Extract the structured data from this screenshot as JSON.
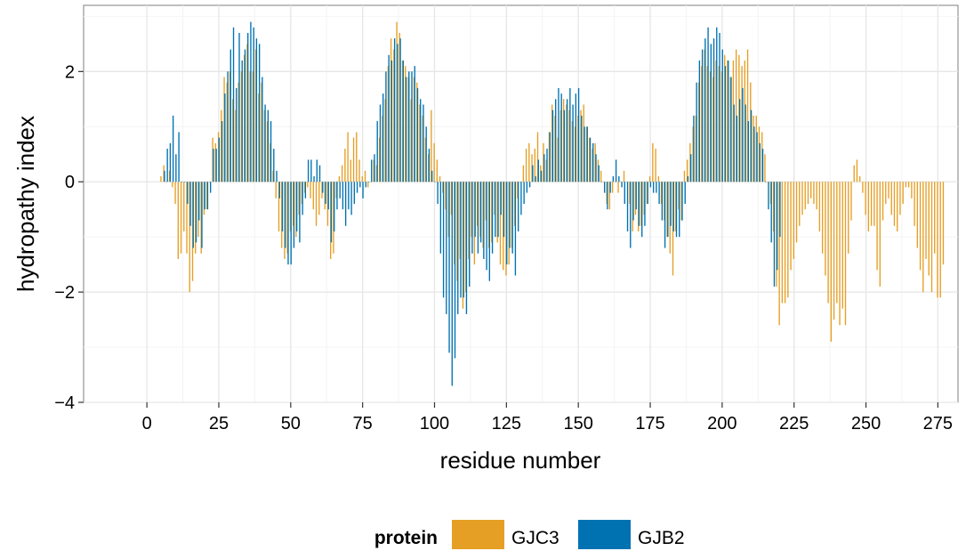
{
  "chart_data": {
    "type": "bar",
    "xlabel": "residue number",
    "ylabel": "hydropathy index",
    "xlim": [
      -22,
      282
    ],
    "ylim": [
      -4,
      3.2
    ],
    "x_ticks": [
      0,
      25,
      50,
      75,
      100,
      125,
      150,
      175,
      200,
      225,
      250,
      275
    ],
    "y_ticks": [
      -4,
      -2,
      0,
      2
    ],
    "x_tick_labels": [
      "0",
      "25",
      "50",
      "75",
      "100",
      "125",
      "150",
      "175",
      "200",
      "225",
      "250",
      "275"
    ],
    "y_tick_labels": [
      "−4",
      "−2",
      "0",
      "2"
    ],
    "grid": true,
    "legend": {
      "title": "protein",
      "placement": "bottom",
      "entries": [
        {
          "name": "GJC3",
          "color": "#E69F25"
        },
        {
          "name": "GJB2",
          "color": "#0072B2"
        }
      ]
    },
    "series": [
      {
        "name": "GJC3",
        "color": "#E69F25",
        "x_start": 5,
        "values": [
          0.1,
          0.3,
          0.0,
          0.2,
          -0.1,
          -0.4,
          -1.4,
          -1.3,
          -0.9,
          -1.3,
          -2.0,
          -1.8,
          -1.3,
          -1.0,
          -1.3,
          -0.6,
          -0.5,
          0.0,
          0.8,
          0.7,
          0.9,
          1.3,
          1.9,
          1.8,
          2.0,
          1.5,
          1.3,
          1.8,
          2.0,
          2.3,
          2.5,
          2.0,
          2.0,
          2.4,
          1.6,
          1.8,
          1.3,
          1.1,
          0.7,
          0.2,
          -0.3,
          -0.9,
          -1.2,
          -1.4,
          -1.3,
          -0.9,
          -0.8,
          -1.0,
          -0.6,
          -0.4,
          -0.2,
          -0.1,
          -0.3,
          -0.5,
          -0.8,
          -0.6,
          -0.3,
          -0.5,
          -0.8,
          -1.4,
          -1.3,
          -0.3,
          0.1,
          0.3,
          0.6,
          0.9,
          0.4,
          0.8,
          0.9,
          0.4,
          0.1,
          0.2,
          -0.1,
          0.0,
          0.4,
          0.3,
          0.8,
          1.2,
          1.5,
          2.1,
          2.6,
          2.4,
          2.9,
          2.7,
          2.2,
          2.1,
          1.9,
          1.5,
          1.9,
          1.8,
          1.4,
          1.2,
          0.8,
          0.5,
          1.3,
          0.7,
          0.4,
          0.1,
          -0.2,
          -0.5,
          -1.0,
          -0.6,
          -1.5,
          -1.8,
          -1.4,
          -2.3,
          -2.0,
          -1.4,
          -1.0,
          -1.5,
          -0.8,
          -1.0,
          -1.2,
          -0.7,
          -1.2,
          -1.1,
          -0.6,
          -1.1,
          -1.5,
          -1.6,
          -1.7,
          -1.5,
          -1.2,
          -0.8,
          -0.3,
          0.0,
          0.3,
          0.6,
          0.7,
          0.5,
          0.6,
          0.9,
          0.3,
          0.7,
          0.4,
          0.9,
          1.4,
          1.2,
          0.8,
          1.3,
          1.5,
          1.4,
          1.3,
          1.1,
          1.0,
          1.2,
          1.3,
          1.4,
          1.0,
          0.8,
          0.6,
          0.7,
          0.4,
          0.2,
          0.0,
          -0.4,
          -0.5,
          -0.2,
          0.0,
          -0.2,
          0.0,
          0.2,
          0.0,
          -0.4,
          -0.9,
          -0.6,
          -0.9,
          -0.8,
          -0.6,
          -0.4,
          0.1,
          0.7,
          0.6,
          0.1,
          -0.4,
          -0.7,
          -1.0,
          -1.3,
          -1.7,
          -0.9,
          -0.5,
          -0.7,
          0.2,
          0.4,
          0.7,
          1.0,
          1.2,
          1.8,
          2.1,
          2.4,
          2.1,
          2.0,
          1.9,
          2.2,
          2.1,
          2.0,
          2.3,
          2.2,
          1.9,
          2.2,
          2.4,
          2.3,
          2.1,
          2.2,
          2.4,
          1.8,
          1.2,
          1.2,
          1.0,
          0.9,
          0.5,
          0.0,
          -0.4,
          -0.9,
          -1.9,
          -2.6,
          -2.2,
          -2.2,
          -2.1,
          -1.6,
          -1.4,
          -1.1,
          -0.8,
          -0.6,
          -0.5,
          -0.4,
          -0.3,
          -0.4,
          -0.5,
          -0.9,
          -1.3,
          -1.7,
          -2.2,
          -2.9,
          -2.5,
          -2.2,
          -2.6,
          -2.3,
          -2.6,
          -1.3,
          -0.7,
          0.3,
          0.4,
          0.1,
          -0.2,
          -0.6,
          -0.9,
          -0.8,
          -0.8,
          -1.6,
          -1.9,
          -0.7,
          -0.4,
          -0.3,
          -0.6,
          -0.8,
          -0.9,
          -0.6,
          -0.4,
          -0.1,
          -0.1,
          -0.3,
          -0.8,
          -1.2,
          -1.6,
          -2.0,
          -1.4,
          -1.7,
          -2.0,
          -1.3,
          -2.1,
          -2.1,
          -1.5
        ]
      },
      {
        "name": "GJB2",
        "color": "#0072B2",
        "x_start": 6,
        "values": [
          0.2,
          0.6,
          0.7,
          1.2,
          0.5,
          0.9,
          0.0,
          0.0,
          -0.4,
          -0.8,
          -1.2,
          -1.1,
          -0.7,
          -1.2,
          -0.5,
          -0.5,
          -0.2,
          0.6,
          0.6,
          0.8,
          1.1,
          1.6,
          2.0,
          2.4,
          2.8,
          1.7,
          2.7,
          2.2,
          2.4,
          2.7,
          2.9,
          2.8,
          2.6,
          2.5,
          1.9,
          1.4,
          1.3,
          1.1,
          0.6,
          0.2,
          -0.3,
          -0.9,
          -1.2,
          -1.5,
          -1.5,
          -1.2,
          -0.9,
          -1.1,
          -0.6,
          -0.3,
          0.4,
          0.4,
          0.1,
          0.4,
          0.3,
          -0.2,
          -0.4,
          -0.5,
          -1.1,
          -0.9,
          -0.5,
          -0.3,
          -0.5,
          -0.8,
          -0.5,
          -0.6,
          -0.4,
          -0.2,
          -0.1,
          -0.3,
          -0.1,
          0.0,
          0.4,
          0.5,
          1.1,
          1.4,
          1.6,
          2.0,
          2.3,
          2.2,
          2.6,
          2.5,
          2.6,
          2.2,
          1.9,
          2.0,
          2.0,
          2.1,
          1.7,
          1.5,
          1.4,
          1.0,
          0.6,
          0.2,
          0.0,
          -0.4,
          -1.3,
          -2.1,
          -2.4,
          -3.1,
          -3.7,
          -3.2,
          -2.4,
          -2.1,
          -2.1,
          -2.4,
          -1.9,
          -1.3,
          -1.0,
          -1.3,
          -1.1,
          -1.4,
          -1.6,
          -1.8,
          -1.3,
          -1.0,
          -1.0,
          -0.6,
          -1.0,
          -1.5,
          -1.2,
          -1.3,
          -1.7,
          -0.9,
          -0.6,
          -0.4,
          -0.2,
          -0.1,
          0.3,
          0.1,
          0.4,
          0.2,
          0.5,
          0.6,
          0.9,
          1.3,
          1.5,
          1.7,
          1.6,
          1.3,
          1.5,
          1.7,
          1.4,
          1.6,
          1.7,
          1.2,
          1.0,
          1.0,
          0.8,
          0.7,
          0.5,
          0.3,
          0.0,
          -0.2,
          -0.5,
          -0.2,
          0.1,
          0.4,
          0.1,
          -0.1,
          -0.4,
          -0.9,
          -1.2,
          -0.7,
          -0.5,
          -0.8,
          -1.0,
          -0.8,
          -0.4,
          -0.1,
          -0.2,
          -0.2,
          -0.4,
          -0.7,
          -1.2,
          -1.0,
          -0.8,
          -0.9,
          -1.0,
          -1.0,
          -0.7,
          -0.4,
          0.1,
          0.5,
          1.2,
          1.8,
          2.2,
          2.4,
          2.6,
          2.8,
          2.5,
          2.6,
          2.8,
          2.7,
          2.4,
          2.1,
          2.2,
          1.9,
          1.4,
          1.2,
          1.5,
          1.7,
          1.4,
          1.1,
          1.3,
          1.0,
          0.9,
          0.7,
          0.6,
          0.0,
          -0.5,
          -1.1,
          -1.9,
          -1.6,
          -1.0
        ]
      }
    ]
  }
}
